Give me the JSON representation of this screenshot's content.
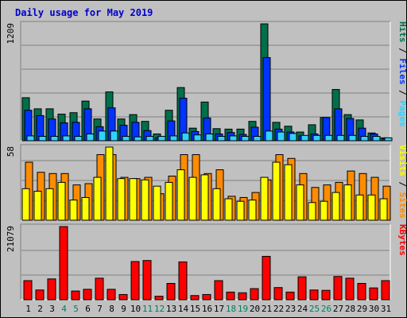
{
  "title": "Daily usage for May 2019",
  "colors": {
    "hits": "#006f4a",
    "files": "#0033ff",
    "pages": "#33d1ff",
    "visits": "#ffff00",
    "sites": "#ff8c00",
    "kbytes": "#ff0000",
    "weekend_label": "#00805c",
    "weekday_label": "#000000",
    "background": "#c0c0c0",
    "grid": "#808080"
  },
  "chart_data": [
    {
      "type": "bar",
      "panel": "hits-files-pages",
      "categories": [
        "1",
        "2",
        "3",
        "4",
        "5",
        "6",
        "7",
        "8",
        "9",
        "10",
        "11",
        "12",
        "13",
        "14",
        "15",
        "16",
        "17",
        "18",
        "19",
        "20",
        "21",
        "22",
        "23",
        "24",
        "25",
        "26",
        "27",
        "28",
        "29",
        "30",
        "31"
      ],
      "weekend_days": [
        "4",
        "5",
        "11",
        "12",
        "18",
        "19",
        "25",
        "26"
      ],
      "ylim": [
        0,
        1209
      ],
      "ytick": "1209",
      "axis_label_parts": [
        {
          "text": "Pages",
          "color": "#33d1ff"
        },
        {
          "text": " / ",
          "color": "#000000"
        },
        {
          "text": "Files",
          "color": "#0033ff"
        },
        {
          "text": " / ",
          "color": "#000000"
        },
        {
          "text": "Hits",
          "color": "#006f4a"
        }
      ],
      "series": [
        {
          "name": "Hits",
          "values": [
            445,
            330,
            330,
            275,
            290,
            410,
            225,
            505,
            225,
            270,
            200,
            70,
            315,
            550,
            130,
            400,
            125,
            120,
            120,
            200,
            1209,
            190,
            150,
            90,
            165,
            240,
            530,
            270,
            215,
            80,
            30
          ]
        },
        {
          "name": "Files",
          "values": [
            315,
            260,
            225,
            185,
            190,
            330,
            145,
            340,
            160,
            190,
            105,
            30,
            205,
            440,
            95,
            235,
            70,
            85,
            65,
            140,
            860,
            120,
            90,
            50,
            70,
            240,
            330,
            230,
            130,
            70,
            20
          ]
        },
        {
          "name": "Pages",
          "values": [
            50,
            45,
            45,
            50,
            45,
            70,
            100,
            100,
            45,
            40,
            45,
            45,
            50,
            80,
            60,
            70,
            45,
            50,
            45,
            45,
            100,
            90,
            75,
            55,
            55,
            55,
            55,
            55,
            45,
            45,
            30
          ]
        }
      ]
    },
    {
      "type": "bar",
      "panel": "visits-sites",
      "categories": [
        "1",
        "2",
        "3",
        "4",
        "5",
        "6",
        "7",
        "8",
        "9",
        "10",
        "11",
        "12",
        "13",
        "14",
        "15",
        "16",
        "17",
        "18",
        "19",
        "20",
        "21",
        "22",
        "23",
        "24",
        "25",
        "26",
        "27",
        "28",
        "29",
        "30",
        "31"
      ],
      "ylim": [
        0,
        58
      ],
      "ytick": "58",
      "axis_label_parts": [
        {
          "text": "Sites",
          "color": "#ff8c00"
        },
        {
          "text": " / ",
          "color": "#000000"
        },
        {
          "text": "Visits",
          "color": "#ffff00"
        }
      ],
      "series": [
        {
          "name": "Visits",
          "values": [
            25,
            23,
            25,
            30,
            16,
            18,
            34,
            58,
            33,
            33,
            32,
            27,
            30,
            40,
            34,
            36,
            25,
            17,
            15,
            16,
            34,
            46,
            44,
            28,
            14,
            15,
            22,
            28,
            20,
            20,
            17
          ]
        },
        {
          "name": "Sites",
          "values": [
            46,
            38,
            37,
            37,
            28,
            29,
            52,
            52,
            34,
            33,
            34,
            21,
            35,
            52,
            52,
            37,
            40,
            19,
            18,
            22,
            32,
            52,
            49,
            37,
            26,
            28,
            30,
            39,
            37,
            34,
            27
          ]
        }
      ]
    },
    {
      "type": "bar",
      "panel": "kbytes",
      "categories": [
        "1",
        "2",
        "3",
        "4",
        "5",
        "6",
        "7",
        "8",
        "9",
        "10",
        "11",
        "12",
        "13",
        "14",
        "15",
        "16",
        "17",
        "18",
        "19",
        "20",
        "21",
        "22",
        "23",
        "24",
        "25",
        "26",
        "27",
        "28",
        "29",
        "30",
        "31"
      ],
      "ylim": [
        0,
        21079
      ],
      "ytick": "21079",
      "axis_label_parts": [
        {
          "text": "KBytes",
          "color": "#ff0000"
        }
      ],
      "series": [
        {
          "name": "KBytes",
          "values": [
            5500,
            2800,
            6000,
            21079,
            2500,
            3000,
            6200,
            3000,
            1500,
            11000,
            11300,
            1000,
            4700,
            10900,
            1200,
            1500,
            5500,
            2200,
            2000,
            3200,
            12500,
            3500,
            2200,
            6600,
            2800,
            2700,
            6700,
            6200,
            4700,
            3400,
            5500
          ]
        }
      ]
    }
  ]
}
